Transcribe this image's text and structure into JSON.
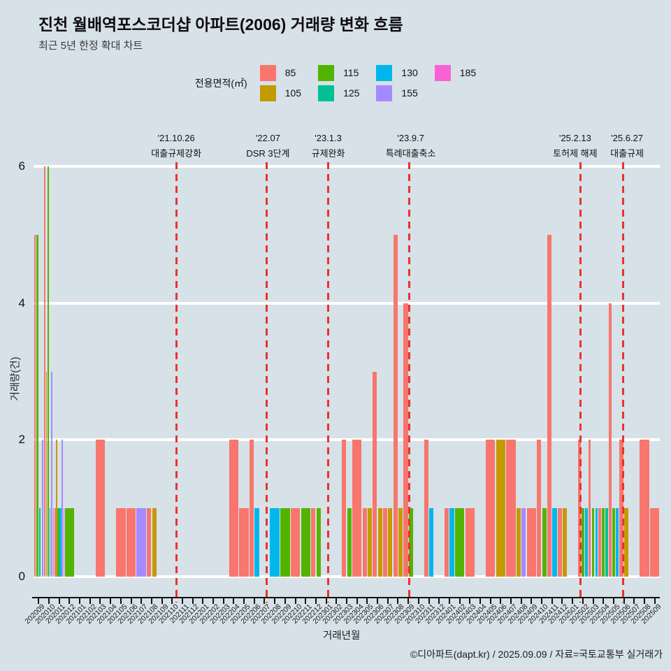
{
  "title": "진천 월배역포스코더샵 아파트(2006) 거래량 변화 흐름",
  "subtitle": "최근 5년 한정 확대 차트",
  "footer": "©디아파트(dapt.kr) / 2025.09.09 / 자료=국토교통부 실거래가",
  "legend": {
    "title": "전용면적(㎡)",
    "columns": [
      [
        {
          "label": "85",
          "color": "#F8766D"
        },
        {
          "label": "105",
          "color": "#C49A00"
        }
      ],
      [
        {
          "label": "115",
          "color": "#53B400"
        },
        {
          "label": "125",
          "color": "#00C094"
        }
      ],
      [
        {
          "label": "130",
          "color": "#00B6EB"
        },
        {
          "label": "155",
          "color": "#A58AFF"
        }
      ],
      [
        {
          "label": "185",
          "color": "#FB61D7"
        }
      ]
    ]
  },
  "chart_data": {
    "type": "bar",
    "title": "진천 월배역포스코더샵 아파트(2006) 거래량 변화 흐름",
    "xlabel": "거래년월",
    "ylabel": "거래량(건)",
    "ylim": [
      0,
      6
    ],
    "yticks": [
      0,
      2,
      4,
      6
    ],
    "grid": "horizontal-white",
    "legend_position": "top-center",
    "bar_mode": "dodge-preserve-total",
    "categories": [
      "202009",
      "202010",
      "202011",
      "202012",
      "202101",
      "202102",
      "202103",
      "202104",
      "202105",
      "202106",
      "202107",
      "202108",
      "202109",
      "202110",
      "202111",
      "202112",
      "202201",
      "202202",
      "202203",
      "202204",
      "202205",
      "202206",
      "202207",
      "202208",
      "202209",
      "202210",
      "202211",
      "202212",
      "202301",
      "202302",
      "202303",
      "202304",
      "202305",
      "202306",
      "202307",
      "202308",
      "202309",
      "202310",
      "202311",
      "202312",
      "202401",
      "202402",
      "202403",
      "202404",
      "202405",
      "202406",
      "202407",
      "202408",
      "202409",
      "202410",
      "202411",
      "202412",
      "202501",
      "202502",
      "202503",
      "202504",
      "202505",
      "202506",
      "202507",
      "202508",
      "202509"
    ],
    "series": [
      {
        "name": "85",
        "color": "#F8766D",
        "points": {
          "202009": 5,
          "202010": 6,
          "202011": 1,
          "202103": 2,
          "202105": 1,
          "202106": 1,
          "202108": 1,
          "202204": 2,
          "202205": 1,
          "202206": 2,
          "202210": 1,
          "202212": 1,
          "202303": 2,
          "202304": 2,
          "202305": 1,
          "202306": 3,
          "202307": 1,
          "202308": 5,
          "202309": 4,
          "202311": 2,
          "202401": 1,
          "202403": 1,
          "202405": 2,
          "202407": 2,
          "202409": 1,
          "202410": 2,
          "202411": 5,
          "202412": 1,
          "202502": 2,
          "202503": 2,
          "202504": 1,
          "202505": 4,
          "202506": 2,
          "202508": 2,
          "202509": 1
        }
      },
      {
        "name": "105",
        "color": "#C49A00",
        "points": {
          "202010": 3,
          "202011": 2,
          "202108": 1,
          "202305": 1,
          "202306": 1,
          "202307": 1,
          "202308": 1,
          "202406": 2,
          "202408": 1,
          "202412": 1,
          "202506": 1
        }
      },
      {
        "name": "115",
        "color": "#53B400",
        "points": {
          "202009": 5,
          "202010": 6,
          "202011": 1,
          "202012": 1,
          "202209": 1,
          "202211": 1,
          "202212": 1,
          "202303": 1,
          "202309": 1,
          "202402": 1,
          "202410": 1,
          "202502": 1,
          "202503": 1,
          "202504": 1,
          "202505": 1
        }
      },
      {
        "name": "125",
        "color": "#00C094",
        "points": {
          "202009": 1,
          "202011": 1,
          "202504": 1
        }
      },
      {
        "name": "130",
        "color": "#00B6EB",
        "points": {
          "202010": 1,
          "202011": 1,
          "202206": 1,
          "202208": 1,
          "202311": 1,
          "202401": 1,
          "202411": 1,
          "202502": 1,
          "202503": 1,
          "202505": 1
        }
      },
      {
        "name": "155",
        "color": "#A58AFF",
        "points": {
          "202009": 2,
          "202010": 3,
          "202011": 2,
          "202107": 1,
          "202408": 1
        }
      },
      {
        "name": "185",
        "color": "#FB61D7",
        "points": {
          "202010": 1,
          "202011": 1
        }
      }
    ],
    "events": [
      {
        "date": "'21.10.26",
        "name": "대출규제강화",
        "mi": 13.4,
        "dx": 0
      },
      {
        "date": "'22.07",
        "name": "DSR 3단계",
        "mi": 22.2,
        "dx": 2
      },
      {
        "date": "'23.1.3",
        "name": "규제완화",
        "mi": 28.2,
        "dx": 0
      },
      {
        "date": "'23.9.7",
        "name": "특례대출축소",
        "mi": 36.1,
        "dx": 2
      },
      {
        "date": "'25.2.13",
        "name": "토허제 해제",
        "mi": 52.8,
        "dx": -8
      },
      {
        "date": "'25.6.27",
        "name": "대출규제",
        "mi": 56.9,
        "dx": 6
      }
    ]
  }
}
